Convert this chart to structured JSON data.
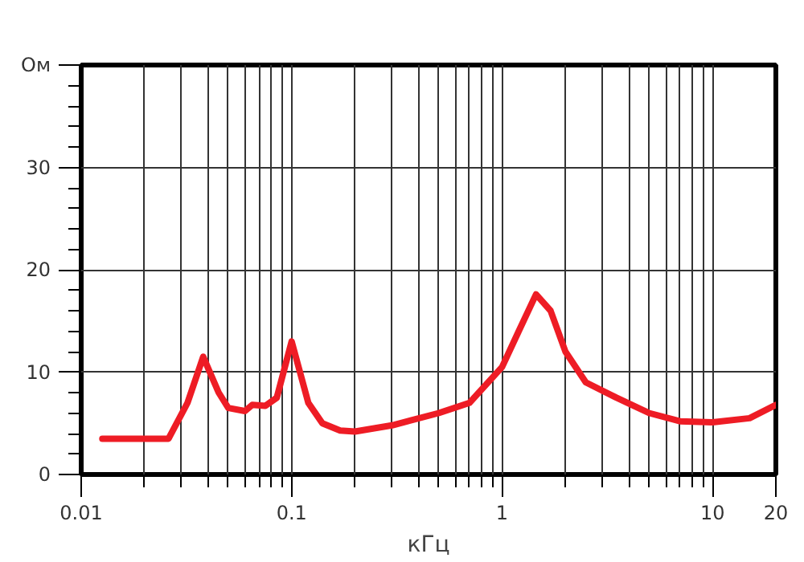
{
  "chart_data": {
    "type": "line",
    "xlabel": "кГц",
    "log": "x",
    "grid": true,
    "xlim": [
      0.01,
      20
    ],
    "xticks": [
      {
        "value": 0.01,
        "label": "0.01"
      },
      {
        "value": 0.1,
        "label": "0.1"
      },
      1,
      10,
      20
    ],
    "ylim": [
      0,
      40
    ],
    "yticks": [
      0,
      10,
      20,
      30,
      {
        "value": 40,
        "label": "Ом"
      }
    ],
    "series": [
      {
        "color": "#ee1c25",
        "x": [
          0.0126,
          0.026,
          0.032,
          0.038,
          0.045,
          0.05,
          0.06,
          0.065,
          0.075,
          0.085,
          0.1,
          0.12,
          0.14,
          0.17,
          0.2,
          0.3,
          0.5,
          0.7,
          1,
          1.2,
          1.45,
          1.7,
          2.0,
          2.5,
          3.5,
          5,
          7,
          10,
          15,
          20
        ],
        "values": [
          3.5,
          3.5,
          7,
          11.5,
          8,
          6.5,
          6.2,
          6.8,
          6.7,
          7.5,
          13,
          7,
          5,
          4.3,
          4.2,
          4.8,
          6,
          7,
          10.5,
          14,
          17.6,
          16,
          12,
          9,
          7.5,
          6,
          5.2,
          5.1,
          5.5,
          6.8
        ]
      }
    ]
  }
}
